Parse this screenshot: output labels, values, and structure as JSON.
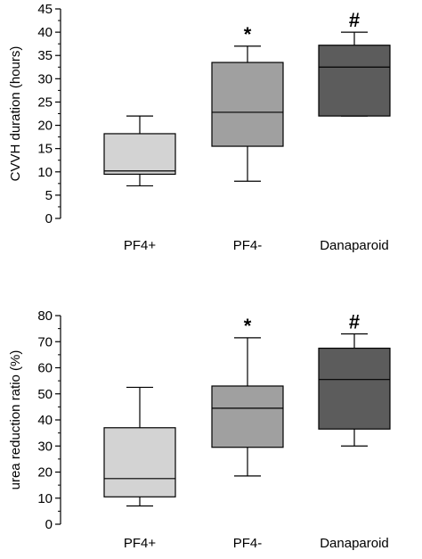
{
  "chart_data": [
    {
      "type": "box",
      "ylabel": "CVVH duration (hours)",
      "ylim": [
        0,
        45
      ],
      "yticks": [
        0,
        5,
        10,
        15,
        20,
        25,
        30,
        35,
        40,
        45
      ],
      "categories": [
        "PF4+",
        "PF4-",
        "Danaparoid"
      ],
      "boxes": [
        {
          "category": "PF4+",
          "whisker_low": 7,
          "q1": 9.5,
          "median": 10.2,
          "q3": 18.2,
          "whisker_high": 22,
          "color": "#d3d3d3",
          "annotation": ""
        },
        {
          "category": "PF4-",
          "whisker_low": 8,
          "q1": 15.5,
          "median": 22.8,
          "q3": 33.5,
          "whisker_high": 37,
          "color": "#a0a0a0",
          "annotation": "*"
        },
        {
          "category": "Danaparoid",
          "whisker_low": 22,
          "q1": 22,
          "median": 32.5,
          "q3": 37.2,
          "whisker_high": 40,
          "color": "#5c5c5c",
          "annotation": "#"
        }
      ]
    },
    {
      "type": "box",
      "ylabel": "urea reduction ratio (%)",
      "ylim": [
        0,
        80
      ],
      "yticks": [
        0,
        10,
        20,
        30,
        40,
        50,
        60,
        70,
        80
      ],
      "categories": [
        "PF4+",
        "PF4-",
        "Danaparoid"
      ],
      "boxes": [
        {
          "category": "PF4+",
          "whisker_low": 7,
          "q1": 10.5,
          "median": 17.5,
          "q3": 37,
          "whisker_high": 52.5,
          "color": "#d3d3d3",
          "annotation": ""
        },
        {
          "category": "PF4-",
          "whisker_low": 18.5,
          "q1": 29.5,
          "median": 44.5,
          "q3": 53,
          "whisker_high": 71.5,
          "color": "#a0a0a0",
          "annotation": "*"
        },
        {
          "category": "Danaparoid",
          "whisker_low": 30,
          "q1": 36.5,
          "median": 55.5,
          "q3": 67.5,
          "whisker_high": 73,
          "color": "#5c5c5c",
          "annotation": "#"
        }
      ]
    }
  ]
}
